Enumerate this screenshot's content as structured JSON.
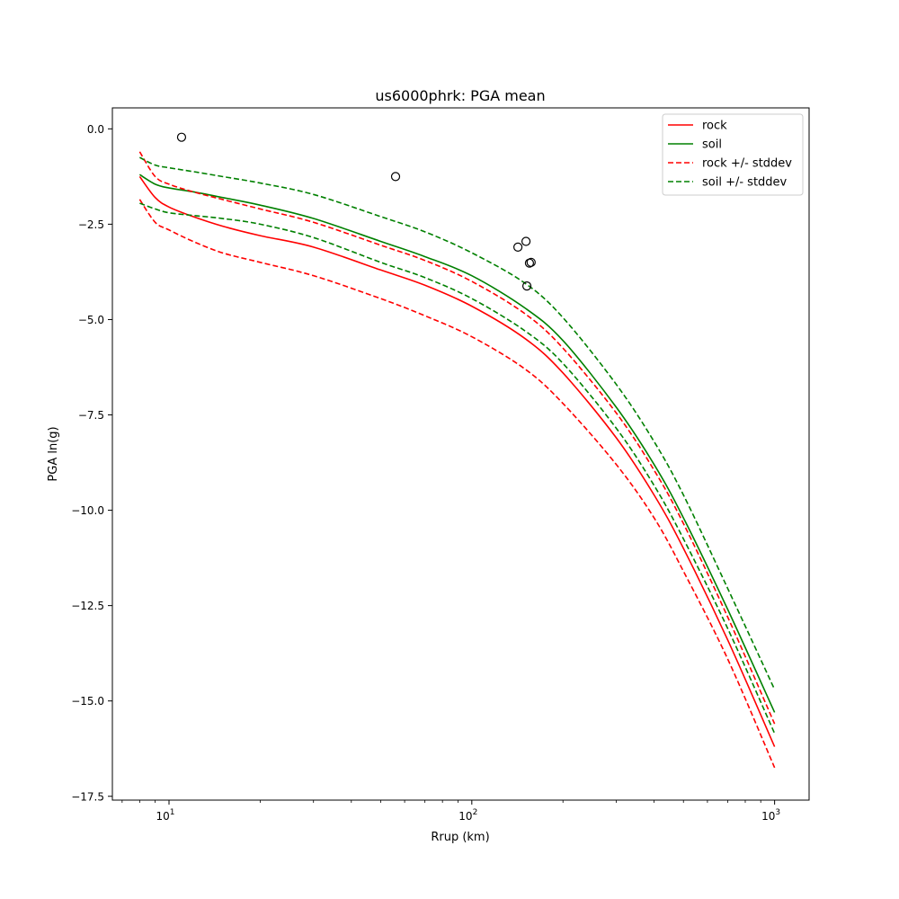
{
  "chart_data": {
    "type": "line",
    "title": "us6000phrk: PGA mean",
    "xlabel": "Rrup (km)",
    "ylabel": "PGA ln(g)",
    "xscale": "log",
    "xlim": [
      6.5,
      1300
    ],
    "ylim": [
      -17.6,
      0.55
    ],
    "xticks": [
      {
        "value": 10,
        "base": "10",
        "exp": "1"
      },
      {
        "value": 100,
        "base": "10",
        "exp": "2"
      },
      {
        "value": 1000,
        "base": "10",
        "exp": "3"
      }
    ],
    "yticks": [
      {
        "value": 0.0,
        "label": "0.0"
      },
      {
        "value": -2.5,
        "label": "−2.5"
      },
      {
        "value": -5.0,
        "label": "−5.0"
      },
      {
        "value": -7.5,
        "label": "−7.5"
      },
      {
        "value": -10.0,
        "label": "−10.0"
      },
      {
        "value": -12.5,
        "label": "−12.5"
      },
      {
        "value": -15.0,
        "label": "−15.0"
      },
      {
        "value": -17.5,
        "label": "−17.5"
      }
    ],
    "grid": false,
    "legend_position": "top-right",
    "series": [
      {
        "name": "rock",
        "color": "#ff0000",
        "style": "solid",
        "x": [
          8,
          9,
          10,
          12,
          15,
          20,
          30,
          50,
          70,
          100,
          150,
          200,
          300,
          400,
          500,
          700,
          1000
        ],
        "y": [
          -1.25,
          -1.8,
          -2.05,
          -2.3,
          -2.55,
          -2.8,
          -3.1,
          -3.7,
          -4.1,
          -4.65,
          -5.5,
          -6.4,
          -8.1,
          -9.6,
          -11.0,
          -13.4,
          -16.2
        ]
      },
      {
        "name": "soil",
        "color": "#008000",
        "style": "solid",
        "x": [
          8,
          9,
          10,
          12,
          15,
          20,
          30,
          50,
          70,
          100,
          150,
          200,
          300,
          400,
          500,
          700,
          1000
        ],
        "y": [
          -1.2,
          -1.45,
          -1.55,
          -1.65,
          -1.8,
          -2.0,
          -2.35,
          -2.95,
          -3.35,
          -3.85,
          -4.7,
          -5.55,
          -7.3,
          -8.8,
          -10.2,
          -12.6,
          -15.3
        ]
      },
      {
        "name": "rock +/- stddev",
        "color": "#ff0000",
        "style": "dashed",
        "x": [
          8,
          9,
          10,
          12,
          15,
          20,
          30,
          50,
          70,
          100,
          150,
          200,
          300,
          400,
          500,
          700,
          1000
        ],
        "y": [
          -0.6,
          -1.25,
          -1.45,
          -1.65,
          -1.85,
          -2.1,
          -2.45,
          -3.05,
          -3.45,
          -4.0,
          -4.85,
          -5.75,
          -7.45,
          -8.95,
          -10.35,
          -12.8,
          -15.6
        ]
      },
      {
        "name": "soil +/- stddev",
        "color": "#008000",
        "style": "dashed",
        "x": [
          8,
          9,
          10,
          12,
          15,
          20,
          30,
          50,
          70,
          100,
          150,
          200,
          300,
          400,
          500,
          700,
          1000
        ],
        "y": [
          -0.75,
          -0.95,
          -1.02,
          -1.12,
          -1.25,
          -1.42,
          -1.72,
          -2.3,
          -2.7,
          -3.25,
          -4.05,
          -4.95,
          -6.7,
          -8.2,
          -9.6,
          -12.05,
          -14.7
        ]
      },
      {
        "name": "",
        "color": "#ff0000",
        "style": "dashed",
        "legend": false,
        "x": [
          8,
          9,
          10,
          12,
          15,
          20,
          30,
          50,
          70,
          100,
          150,
          200,
          300,
          400,
          500,
          700,
          1000
        ],
        "y": [
          -1.85,
          -2.45,
          -2.65,
          -2.95,
          -3.25,
          -3.5,
          -3.85,
          -4.45,
          -4.9,
          -5.45,
          -6.3,
          -7.2,
          -8.8,
          -10.2,
          -11.6,
          -13.9,
          -16.75
        ]
      },
      {
        "name": "",
        "color": "#008000",
        "style": "dashed",
        "legend": false,
        "x": [
          8,
          9,
          10,
          12,
          15,
          20,
          30,
          50,
          70,
          100,
          150,
          200,
          300,
          400,
          500,
          700,
          1000
        ],
        "y": [
          -1.95,
          -2.1,
          -2.2,
          -2.27,
          -2.35,
          -2.5,
          -2.85,
          -3.5,
          -3.9,
          -4.45,
          -5.3,
          -6.15,
          -7.85,
          -9.35,
          -10.75,
          -13.1,
          -15.85
        ]
      }
    ],
    "observations": {
      "marker": "open-circle",
      "x": [
        11,
        56,
        142,
        151,
        152,
        155,
        157
      ],
      "y": [
        -0.22,
        -1.25,
        -3.1,
        -2.95,
        -4.12,
        -3.52,
        -3.5
      ]
    }
  }
}
